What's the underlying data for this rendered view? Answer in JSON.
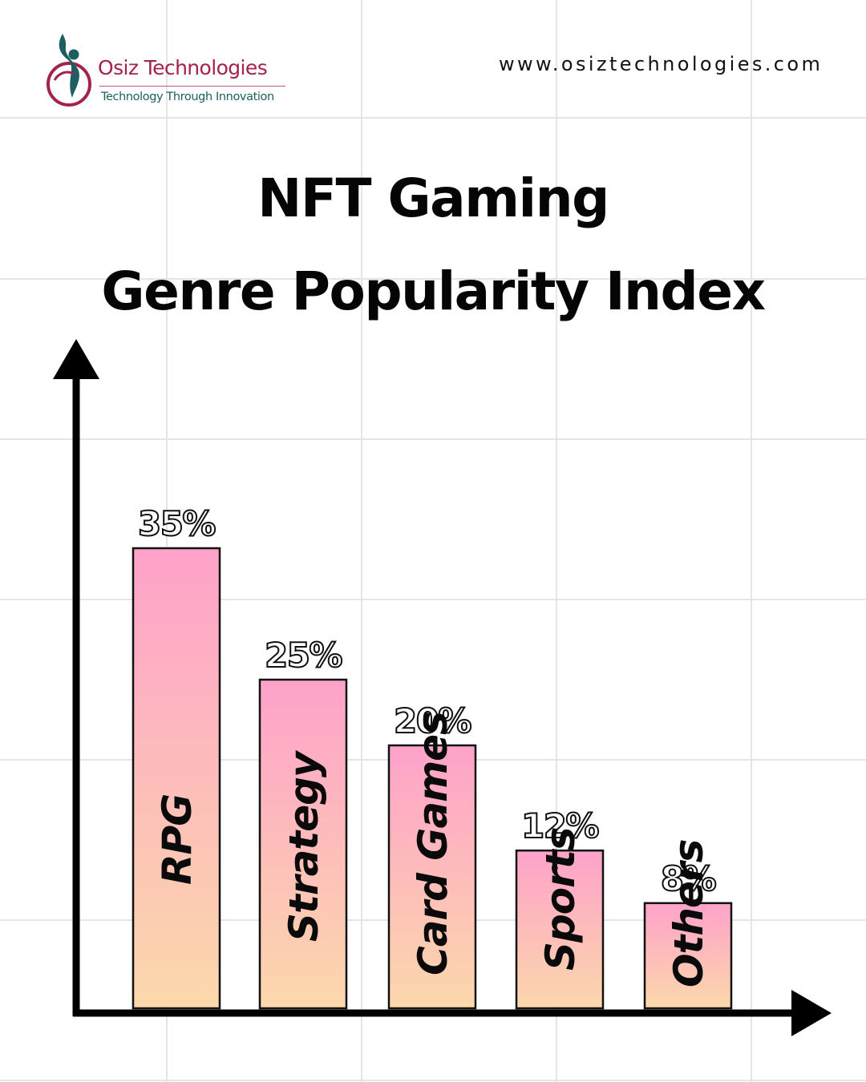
{
  "header": {
    "brand_name": "Osiz Technologies",
    "tagline": "Technology Through Innovation",
    "website": "www.osiztechnologies.com",
    "logo_icon": "person-in-ring-icon",
    "brand_color": "#a3234b",
    "tagline_color": "#1d5f61"
  },
  "chart_data": {
    "type": "bar",
    "title": [
      "NFT Gaming",
      "Genre Popularity Index"
    ],
    "categories": [
      "RPG",
      "Strategy",
      "Card Games",
      "Sports",
      "Others"
    ],
    "values": [
      35,
      25,
      20,
      12,
      8
    ],
    "value_labels": [
      "35%",
      "25%",
      "20%",
      "12%",
      "8%"
    ],
    "unit": "%",
    "ylim": [
      0,
      50
    ],
    "axis_ticks": false,
    "grid": true,
    "bar_gradient": [
      "#fea2ca",
      "#fcd8ab"
    ],
    "axis_color": "#000000"
  }
}
